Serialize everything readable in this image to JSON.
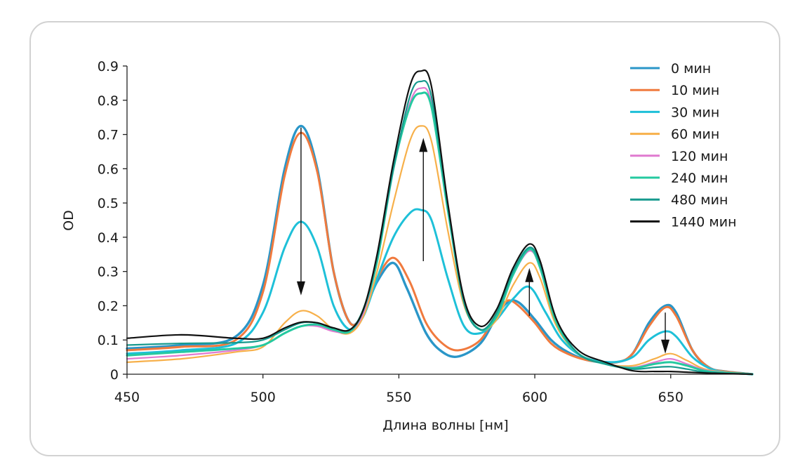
{
  "chart_data": {
    "type": "line",
    "xlabel": "Длина волны [нм]",
    "ylabel": "OD",
    "xlim": [
      450,
      680
    ],
    "ylim": [
      0,
      0.9
    ],
    "xticks": [
      450,
      500,
      550,
      600,
      650
    ],
    "yticks": [
      0,
      0.1,
      0.2,
      0.3,
      0.4,
      0.5,
      0.6,
      0.7,
      0.8,
      0.9
    ],
    "ytick_labels": [
      "0",
      "0.1",
      "0.2",
      "0.3",
      "0.4",
      "0.5",
      "0.6",
      "0.7",
      "0.8",
      "0.9"
    ],
    "grid": false,
    "legend_position": "top-right",
    "arrows": [
      {
        "x": 514,
        "y_from": 0.72,
        "y_to": 0.23,
        "direction": "down"
      },
      {
        "x": 559,
        "y_from": 0.33,
        "y_to": 0.69,
        "direction": "up"
      },
      {
        "x": 598,
        "y_from": 0.17,
        "y_to": 0.31,
        "direction": "up"
      },
      {
        "x": 648,
        "y_from": 0.18,
        "y_to": 0.06,
        "direction": "down"
      }
    ],
    "series": [
      {
        "name": "0 мин",
        "color": "#2a96c8",
        "width": 3.4,
        "points": [
          [
            450,
            0.075
          ],
          [
            470,
            0.085
          ],
          [
            490,
            0.11
          ],
          [
            500,
            0.26
          ],
          [
            508,
            0.6
          ],
          [
            514,
            0.725
          ],
          [
            520,
            0.6
          ],
          [
            526,
            0.3
          ],
          [
            532,
            0.15
          ],
          [
            537,
            0.18
          ],
          [
            542,
            0.27
          ],
          [
            548,
            0.325
          ],
          [
            553,
            0.25
          ],
          [
            560,
            0.12
          ],
          [
            566,
            0.065
          ],
          [
            572,
            0.052
          ],
          [
            580,
            0.09
          ],
          [
            586,
            0.17
          ],
          [
            590,
            0.21
          ],
          [
            594,
            0.21
          ],
          [
            600,
            0.16
          ],
          [
            606,
            0.1
          ],
          [
            612,
            0.065
          ],
          [
            620,
            0.04
          ],
          [
            630,
            0.035
          ],
          [
            636,
            0.06
          ],
          [
            642,
            0.15
          ],
          [
            648,
            0.2
          ],
          [
            652,
            0.18
          ],
          [
            658,
            0.07
          ],
          [
            664,
            0.02
          ],
          [
            670,
            0.008
          ],
          [
            680,
            0.0
          ]
        ]
      },
      {
        "name": "10 мин",
        "color": "#f07a3e",
        "width": 3.0,
        "points": [
          [
            450,
            0.07
          ],
          [
            470,
            0.08
          ],
          [
            490,
            0.1
          ],
          [
            500,
            0.24
          ],
          [
            508,
            0.58
          ],
          [
            514,
            0.705
          ],
          [
            520,
            0.59
          ],
          [
            526,
            0.3
          ],
          [
            532,
            0.15
          ],
          [
            537,
            0.18
          ],
          [
            542,
            0.28
          ],
          [
            548,
            0.34
          ],
          [
            554,
            0.27
          ],
          [
            560,
            0.15
          ],
          [
            566,
            0.09
          ],
          [
            572,
            0.07
          ],
          [
            580,
            0.1
          ],
          [
            586,
            0.18
          ],
          [
            590,
            0.215
          ],
          [
            594,
            0.2
          ],
          [
            600,
            0.15
          ],
          [
            606,
            0.09
          ],
          [
            612,
            0.06
          ],
          [
            620,
            0.04
          ],
          [
            630,
            0.035
          ],
          [
            636,
            0.06
          ],
          [
            642,
            0.14
          ],
          [
            648,
            0.195
          ],
          [
            652,
            0.17
          ],
          [
            658,
            0.07
          ],
          [
            664,
            0.02
          ],
          [
            670,
            0.008
          ],
          [
            680,
            0.0
          ]
        ]
      },
      {
        "name": "30 мин",
        "color": "#1ec0d8",
        "width": 3.0,
        "points": [
          [
            450,
            0.06
          ],
          [
            470,
            0.07
          ],
          [
            490,
            0.09
          ],
          [
            500,
            0.18
          ],
          [
            508,
            0.37
          ],
          [
            514,
            0.445
          ],
          [
            520,
            0.37
          ],
          [
            526,
            0.2
          ],
          [
            532,
            0.13
          ],
          [
            537,
            0.17
          ],
          [
            542,
            0.28
          ],
          [
            548,
            0.4
          ],
          [
            554,
            0.47
          ],
          [
            558,
            0.48
          ],
          [
            562,
            0.45
          ],
          [
            568,
            0.28
          ],
          [
            574,
            0.14
          ],
          [
            580,
            0.12
          ],
          [
            586,
            0.16
          ],
          [
            592,
            0.22
          ],
          [
            598,
            0.255
          ],
          [
            604,
            0.18
          ],
          [
            610,
            0.1
          ],
          [
            618,
            0.05
          ],
          [
            628,
            0.035
          ],
          [
            636,
            0.05
          ],
          [
            642,
            0.1
          ],
          [
            648,
            0.125
          ],
          [
            652,
            0.11
          ],
          [
            658,
            0.05
          ],
          [
            664,
            0.018
          ],
          [
            670,
            0.006
          ],
          [
            680,
            0.0
          ]
        ]
      },
      {
        "name": "60 мин",
        "color": "#f7b04a",
        "width": 2.2,
        "points": [
          [
            450,
            0.035
          ],
          [
            470,
            0.045
          ],
          [
            490,
            0.065
          ],
          [
            500,
            0.08
          ],
          [
            508,
            0.15
          ],
          [
            514,
            0.185
          ],
          [
            520,
            0.17
          ],
          [
            526,
            0.13
          ],
          [
            532,
            0.12
          ],
          [
            537,
            0.17
          ],
          [
            542,
            0.3
          ],
          [
            548,
            0.5
          ],
          [
            554,
            0.68
          ],
          [
            558,
            0.725
          ],
          [
            562,
            0.68
          ],
          [
            568,
            0.42
          ],
          [
            574,
            0.2
          ],
          [
            580,
            0.13
          ],
          [
            586,
            0.16
          ],
          [
            592,
            0.26
          ],
          [
            598,
            0.325
          ],
          [
            602,
            0.28
          ],
          [
            608,
            0.14
          ],
          [
            616,
            0.06
          ],
          [
            626,
            0.03
          ],
          [
            636,
            0.025
          ],
          [
            644,
            0.045
          ],
          [
            650,
            0.06
          ],
          [
            656,
            0.04
          ],
          [
            664,
            0.012
          ],
          [
            680,
            0.0
          ]
        ]
      },
      {
        "name": "120 мин",
        "color": "#e07ad0",
        "width": 2.2,
        "points": [
          [
            450,
            0.045
          ],
          [
            470,
            0.055
          ],
          [
            490,
            0.07
          ],
          [
            500,
            0.085
          ],
          [
            508,
            0.12
          ],
          [
            514,
            0.14
          ],
          [
            520,
            0.14
          ],
          [
            526,
            0.125
          ],
          [
            532,
            0.125
          ],
          [
            537,
            0.18
          ],
          [
            542,
            0.33
          ],
          [
            548,
            0.6
          ],
          [
            554,
            0.79
          ],
          [
            558,
            0.835
          ],
          [
            562,
            0.79
          ],
          [
            568,
            0.48
          ],
          [
            574,
            0.21
          ],
          [
            580,
            0.13
          ],
          [
            586,
            0.17
          ],
          [
            592,
            0.29
          ],
          [
            598,
            0.36
          ],
          [
            602,
            0.31
          ],
          [
            608,
            0.15
          ],
          [
            616,
            0.06
          ],
          [
            626,
            0.03
          ],
          [
            636,
            0.02
          ],
          [
            644,
            0.035
          ],
          [
            650,
            0.045
          ],
          [
            656,
            0.03
          ],
          [
            664,
            0.01
          ],
          [
            680,
            0.0
          ]
        ]
      },
      {
        "name": "240 мин",
        "color": "#25c9a0",
        "width": 3.0,
        "points": [
          [
            450,
            0.055
          ],
          [
            470,
            0.065
          ],
          [
            490,
            0.075
          ],
          [
            500,
            0.085
          ],
          [
            508,
            0.12
          ],
          [
            514,
            0.14
          ],
          [
            520,
            0.145
          ],
          [
            526,
            0.13
          ],
          [
            532,
            0.125
          ],
          [
            537,
            0.19
          ],
          [
            542,
            0.33
          ],
          [
            548,
            0.6
          ],
          [
            554,
            0.78
          ],
          [
            558,
            0.82
          ],
          [
            562,
            0.78
          ],
          [
            568,
            0.48
          ],
          [
            574,
            0.21
          ],
          [
            580,
            0.13
          ],
          [
            586,
            0.17
          ],
          [
            592,
            0.29
          ],
          [
            598,
            0.365
          ],
          [
            602,
            0.31
          ],
          [
            608,
            0.15
          ],
          [
            616,
            0.06
          ],
          [
            626,
            0.03
          ],
          [
            636,
            0.018
          ],
          [
            644,
            0.03
          ],
          [
            650,
            0.035
          ],
          [
            656,
            0.025
          ],
          [
            664,
            0.008
          ],
          [
            680,
            0.0
          ]
        ]
      },
      {
        "name": "480 мин",
        "color": "#179a8e",
        "width": 2.2,
        "points": [
          [
            450,
            0.085
          ],
          [
            470,
            0.09
          ],
          [
            490,
            0.092
          ],
          [
            500,
            0.1
          ],
          [
            508,
            0.13
          ],
          [
            514,
            0.15
          ],
          [
            520,
            0.15
          ],
          [
            526,
            0.135
          ],
          [
            532,
            0.13
          ],
          [
            537,
            0.19
          ],
          [
            542,
            0.34
          ],
          [
            548,
            0.6
          ],
          [
            554,
            0.81
          ],
          [
            558,
            0.855
          ],
          [
            562,
            0.81
          ],
          [
            568,
            0.49
          ],
          [
            574,
            0.21
          ],
          [
            580,
            0.13
          ],
          [
            586,
            0.18
          ],
          [
            592,
            0.3
          ],
          [
            598,
            0.37
          ],
          [
            602,
            0.32
          ],
          [
            608,
            0.16
          ],
          [
            616,
            0.06
          ],
          [
            626,
            0.03
          ],
          [
            636,
            0.015
          ],
          [
            644,
            0.02
          ],
          [
            650,
            0.022
          ],
          [
            656,
            0.015
          ],
          [
            664,
            0.005
          ],
          [
            680,
            0.0
          ]
        ]
      },
      {
        "name": "1440 мин",
        "color": "#111111",
        "width": 2.2,
        "points": [
          [
            450,
            0.105
          ],
          [
            470,
            0.115
          ],
          [
            490,
            0.105
          ],
          [
            500,
            0.105
          ],
          [
            508,
            0.135
          ],
          [
            514,
            0.152
          ],
          [
            520,
            0.15
          ],
          [
            526,
            0.135
          ],
          [
            532,
            0.13
          ],
          [
            537,
            0.19
          ],
          [
            542,
            0.35
          ],
          [
            548,
            0.62
          ],
          [
            554,
            0.84
          ],
          [
            558,
            0.885
          ],
          [
            562,
            0.84
          ],
          [
            568,
            0.5
          ],
          [
            574,
            0.22
          ],
          [
            580,
            0.14
          ],
          [
            586,
            0.19
          ],
          [
            592,
            0.31
          ],
          [
            598,
            0.38
          ],
          [
            602,
            0.33
          ],
          [
            608,
            0.16
          ],
          [
            616,
            0.07
          ],
          [
            626,
            0.035
          ],
          [
            636,
            0.01
          ],
          [
            644,
            0.008
          ],
          [
            650,
            0.008
          ],
          [
            656,
            0.006
          ],
          [
            664,
            0.003
          ],
          [
            680,
            0.0
          ]
        ]
      }
    ]
  }
}
